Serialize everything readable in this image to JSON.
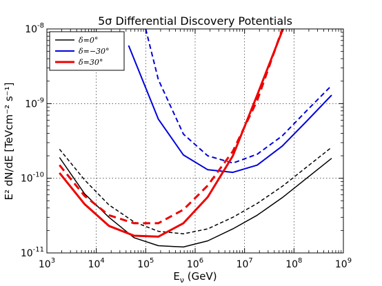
{
  "chart_data": {
    "type": "line",
    "title": "5σ Differential Discovery Potentials",
    "xlabel": "E_ν (GeV)",
    "ylabel": "E² dN/dE [TeVcm⁻² s⁻¹]",
    "xscale": "log",
    "yscale": "log",
    "xlim": [
      1000,
      1000000000
    ],
    "ylim": [
      1e-11,
      1e-08
    ],
    "grid": true,
    "legend_position": "top-left",
    "x_tick_labels": [
      {
        "value": 1000,
        "base": "10",
        "exp": "3"
      },
      {
        "value": 10000,
        "base": "10",
        "exp": "4"
      },
      {
        "value": 100000,
        "base": "10",
        "exp": "5"
      },
      {
        "value": 1000000,
        "base": "10",
        "exp": "6"
      },
      {
        "value": 10000000,
        "base": "10",
        "exp": "7"
      },
      {
        "value": 100000000,
        "base": "10",
        "exp": "8"
      },
      {
        "value": 1000000000,
        "base": "10",
        "exp": "9"
      }
    ],
    "y_tick_labels": [
      {
        "value": 1e-11,
        "base": "10",
        "exp": "-11"
      },
      {
        "value": 1e-10,
        "base": "10",
        "exp": "-10"
      },
      {
        "value": 1e-09,
        "base": "10",
        "exp": "-9"
      },
      {
        "value": 1e-08,
        "base": "10",
        "exp": "-8"
      }
    ],
    "series": [
      {
        "name": "δ=0°",
        "legend": true,
        "color": "#000000",
        "style": "solid",
        "width": 1.5,
        "x": [
          1800,
          5800,
          18000,
          58000,
          180000,
          580000,
          1800000,
          5800000,
          18000000,
          58000000,
          580000000
        ],
        "y": [
          1.9e-10,
          6.2e-11,
          3e-11,
          1.6e-11,
          1.25e-11,
          1.2e-11,
          1.45e-11,
          2.1e-11,
          3.2e-11,
          5.5e-11,
          1.85e-10
        ]
      },
      {
        "name": "δ=0° (dashed)",
        "legend": false,
        "color": "#000000",
        "style": "dashed",
        "width": 1.5,
        "x": [
          1800,
          5800,
          18000,
          58000,
          180000,
          580000,
          1800000,
          5800000,
          18000000,
          58000000,
          580000000
        ],
        "y": [
          2.45e-10,
          9.5e-11,
          4.4e-11,
          2.6e-11,
          1.95e-11,
          1.8e-11,
          2.1e-11,
          3e-11,
          4.6e-11,
          7.8e-11,
          2.6e-10
        ]
      },
      {
        "name": "δ=−30°",
        "legend": true,
        "color": "#0000dd",
        "style": "solid",
        "width": 2,
        "x": [
          45000,
          180000,
          580000,
          1800000,
          5800000,
          18000000,
          58000000,
          180000000,
          580000000
        ],
        "y": [
          6e-09,
          6.2e-10,
          2.05e-10,
          1.3e-10,
          1.2e-10,
          1.5e-10,
          2.7e-10,
          5.8e-10,
          1.3e-09
        ]
      },
      {
        "name": "δ=−30° (dashed)",
        "legend": false,
        "color": "#0000dd",
        "style": "dashed",
        "width": 2,
        "x": [
          100000,
          180000,
          580000,
          1800000,
          5800000,
          18000000,
          58000000,
          180000000,
          580000000
        ],
        "y": [
          1e-08,
          2.1e-09,
          3.9e-10,
          2e-10,
          1.6e-10,
          2.1e-10,
          3.7e-10,
          8e-10,
          1.75e-09
        ]
      },
      {
        "name": "δ=30°",
        "legend": true,
        "color": "#ee0000",
        "style": "solid",
        "width": 3,
        "x": [
          1800,
          5800,
          18000,
          58000,
          180000,
          580000,
          1800000,
          5800000,
          18000000,
          60000000
        ],
        "y": [
          1.18e-10,
          4.5e-11,
          2.3e-11,
          1.7e-11,
          1.65e-11,
          2.5e-11,
          5.6e-11,
          2e-10,
          1.3e-09,
          1e-08
        ]
      },
      {
        "name": "δ=30° (dashed)",
        "legend": false,
        "color": "#ee0000",
        "style": "dashed",
        "width": 3,
        "x": [
          1800,
          5800,
          18000,
          58000,
          180000,
          580000,
          1800000,
          5800000,
          18000000,
          58000000
        ],
        "y": [
          1.5e-10,
          5.8e-11,
          3.2e-11,
          2.5e-11,
          2.5e-11,
          3.8e-11,
          8e-11,
          2.3e-10,
          1.1e-09,
          1e-08
        ]
      }
    ]
  }
}
